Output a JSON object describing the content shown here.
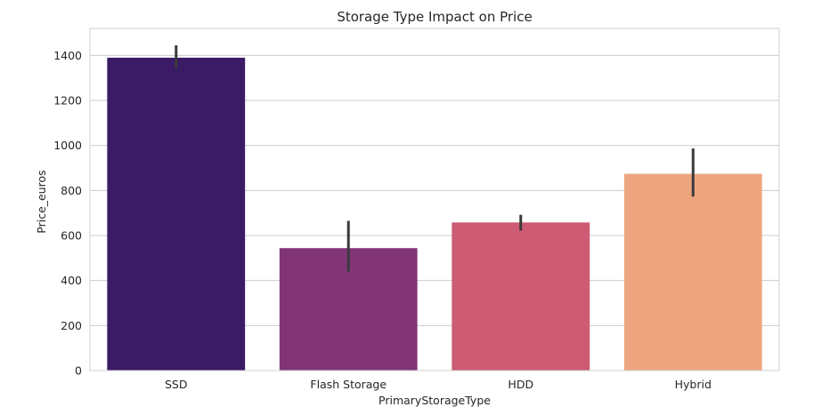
{
  "chart_data": {
    "type": "bar",
    "title": "Storage Type Impact on Price",
    "xlabel": "PrimaryStorageType",
    "ylabel": "Price_euros",
    "categories": [
      "SSD",
      "Flash Storage",
      "HDD",
      "Hybrid"
    ],
    "values": [
      1390,
      544,
      658,
      874
    ],
    "error_low": [
      1340,
      440,
      622,
      773
    ],
    "error_high": [
      1445,
      665,
      692,
      987
    ],
    "colors": [
      "#3b1a66",
      "#813577",
      "#cc5b73",
      "#eda57f"
    ],
    "ylim": [
      0,
      1520
    ],
    "yticks": [
      0,
      200,
      400,
      600,
      800,
      1000,
      1200,
      1400
    ],
    "grid": true,
    "legend": "none"
  }
}
